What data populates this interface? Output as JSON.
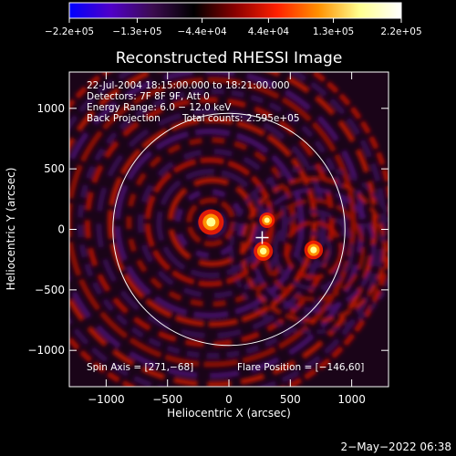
{
  "chart_data": {
    "type": "heatmap",
    "title": "Reconstructed RHESSI Image",
    "xlabel": "Heliocentric X (arcsec)",
    "ylabel": "Heliocentric Y (arcsec)",
    "xlim": [
      -1300,
      1300
    ],
    "ylim": [
      -1300,
      1300
    ],
    "xticks": [
      -1000,
      -500,
      0,
      500,
      1000
    ],
    "xtick_labels": [
      "−1000",
      "−500",
      "0",
      "500",
      "1000"
    ],
    "yticks": [
      -1000,
      -500,
      0,
      500,
      1000
    ],
    "ytick_labels": [
      "−1000",
      "−500",
      "0",
      "500",
      "1000"
    ],
    "colorbar": {
      "range": [
        -220000,
        220000
      ],
      "tick_values": [
        -220000,
        -130000,
        -44000,
        44000,
        130000,
        220000
      ],
      "tick_labels": [
        "−2.2e+05",
        "−1.3e+05",
        "−4.4e+04",
        "4.4e+04",
        "1.3e+05",
        "2.2e+05"
      ],
      "colormap_stops": [
        "#0000ff",
        "#5000c8",
        "#3c0c50",
        "#000000",
        "#8a0000",
        "#ff2000",
        "#ff9000",
        "#ffff90",
        "#ffffff"
      ]
    },
    "annotations": {
      "time_range": "22-Jul-2004 18:15:00.000 to 18:21:00.000",
      "detectors": "Detectors: 7F 8F 9F, Att 0",
      "energy_range": "Energy Range: 6.0 − 12.0 keV",
      "method": "Back Projection",
      "total_counts": "Total counts: 2.595e+05",
      "spin_axis": "Spin Axis = [271,−68]",
      "flare_position": "Flare Position = [−146,60]"
    },
    "solar_limb_radius_arcsec": 945,
    "marker_cross": {
      "x": 271,
      "y": -68
    },
    "sources": [
      {
        "x": -146,
        "y": 60,
        "peak": 220000
      },
      {
        "x": 280,
        "y": -180,
        "peak": 150000
      },
      {
        "x": 310,
        "y": 75,
        "peak": 110000
      },
      {
        "x": 690,
        "y": -170,
        "peak": 145000
      }
    ]
  },
  "footer": {
    "date": "2−May−2022 06:38"
  }
}
